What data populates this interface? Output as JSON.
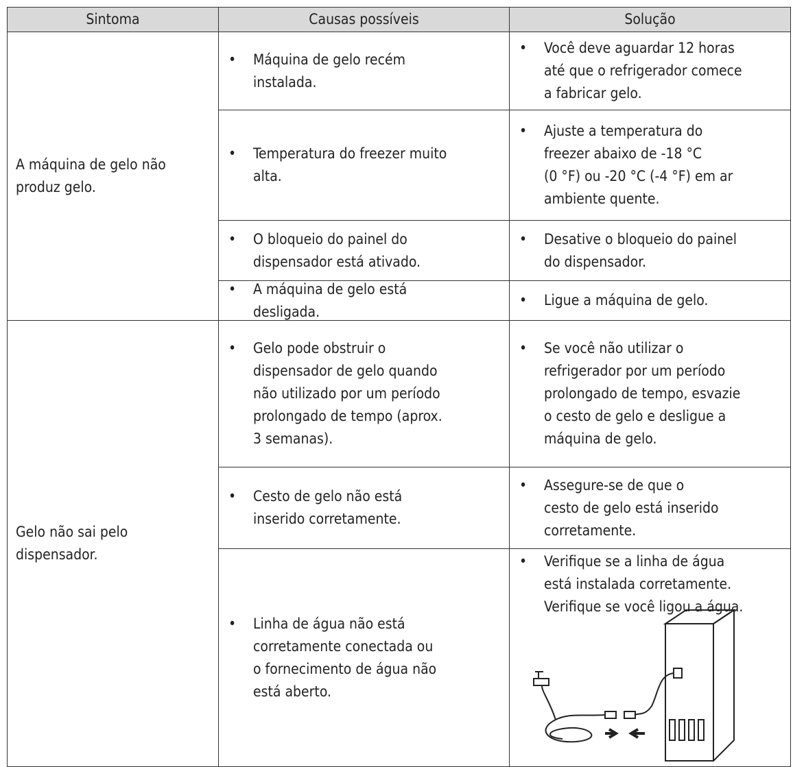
{
  "header": {
    "columns": [
      "Sintoma",
      "Causas possíveis",
      "Solução"
    ]
  },
  "groups": [
    {
      "symptom": [
        "A máquina de gelo não",
        "produz gelo."
      ],
      "rows": [
        {
          "cause": [
            "Máquina de gelo recém",
            "instalada."
          ],
          "solution": [
            "Você deve aguardar 12 horas",
            "até que o refrigerador comece",
            "a fabricar gelo."
          ]
        },
        {
          "cause": [
            "Temperatura do freezer muito",
            "alta."
          ],
          "solution": [
            "Ajuste a temperatura do",
            "freezer abaixo de -18 °C",
            "(0 °F) ou -20 °C (-4 °F) em ar",
            "ambiente quente."
          ]
        },
        {
          "cause": [
            "O bloqueio do painel do",
            "dispensador está ativado."
          ],
          "solution": [
            "Desative o bloqueio do painel",
            "do dispensador."
          ]
        },
        {
          "cause": [
            "A máquina de gelo está",
            "desligada."
          ],
          "solution": [
            "Ligue a máquina de gelo."
          ]
        }
      ]
    },
    {
      "symptom": [
        "Gelo não sai pelo",
        "dispensador."
      ],
      "rows": [
        {
          "cause": [
            "Gelo pode obstruir o",
            "dispensador de gelo quando",
            "não utilizado por um período",
            "prolongado de tempo (aprox.",
            "3 semanas)."
          ],
          "solution": [
            "Se você não utilizar o",
            "refrigerador por um período",
            "prolongado de tempo, esvazie",
            "o cesto de gelo e desligue a",
            "máquina de gelo."
          ]
        },
        {
          "cause": [
            "Cesto de gelo não está",
            "inserido corretamente."
          ],
          "solution": [
            "Assegure-se de que o",
            "cesto de gelo está inserido",
            "corretamente."
          ]
        },
        {
          "cause": [
            "Linha de água não está",
            "corretamente conectada ou",
            "o fornecimento de água não",
            "está aberto."
          ],
          "solution": [
            "Verifique se a linha de água",
            "está instalada corretamente.",
            "Verifique se você ligou a água."
          ]
        }
      ]
    }
  ]
}
